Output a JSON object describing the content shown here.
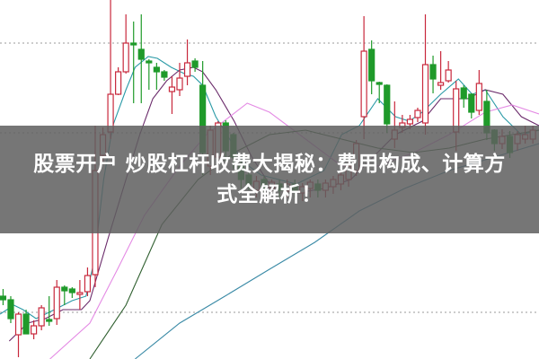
{
  "article": {
    "title_line1": "股票开户 炒股杠杆收费大揭秘：费用构成、计算方",
    "title_line2": "式全解析！"
  },
  "colors": {
    "up": "#c8283c",
    "down": "#1f9a2a",
    "grid": "#999999",
    "band": "#5f5f5f",
    "ma5": "#2a9aa6",
    "ma10": "#6a2a6a",
    "ma20": "#e48ae4",
    "ma30": "#2f5f2f",
    "ma60": "#3a8aa6"
  },
  "chart_data": {
    "type": "candlestick",
    "title": "",
    "xlabel": "",
    "ylabel": "",
    "axes_visible": false,
    "xlim": [
      -0.4,
      69.8
    ],
    "ylim": [
      0,
      100
    ],
    "grid": {
      "style": "dotted",
      "horizontal_levels": [
        88,
        63,
        13
      ]
    },
    "candles_ohlc": [
      [
        17.5,
        19.5,
        15,
        16.5
      ],
      [
        16.5,
        17.5,
        10,
        11.25
      ],
      [
        6.75,
        13,
        0.5,
        12.5
      ],
      [
        12.5,
        13.75,
        7,
        7
      ],
      [
        7,
        10.75,
        5.5,
        9.25
      ],
      [
        9.25,
        15,
        8,
        14.25
      ],
      [
        11,
        17.5,
        9.25,
        10.5
      ],
      [
        11.25,
        22,
        9.5,
        20
      ],
      [
        20,
        20.5,
        15,
        19
      ],
      [
        19.5,
        20,
        17,
        18.5
      ],
      [
        18,
        22,
        13.75,
        18.5
      ],
      [
        18.75,
        25.5,
        17.5,
        23.25
      ],
      [
        23.5,
        65,
        20,
        52.5
      ],
      [
        56.75,
        64.5,
        55,
        62.5
      ],
      [
        63.25,
        100,
        61.25,
        73.75
      ],
      [
        73.75,
        81.25,
        73.5,
        80
      ],
      [
        80,
        96,
        79.5,
        88
      ],
      [
        88,
        94,
        71.25,
        87.5
      ],
      [
        86.25,
        96,
        71.25,
        83.5
      ],
      [
        83,
        83.5,
        75,
        82.5
      ],
      [
        81.25,
        82.5,
        75,
        80
      ],
      [
        80,
        80.5,
        77.5,
        78.5
      ],
      [
        74.5,
        78.75,
        68.25,
        75.75
      ],
      [
        75,
        82.5,
        73.25,
        78.25
      ],
      [
        78.75,
        89,
        76.25,
        82.5
      ],
      [
        83,
        83.75,
        80,
        81.25
      ],
      [
        76.25,
        83,
        51.25,
        57.5
      ],
      [
        53.75,
        65,
        51.25,
        63.75
      ],
      [
        56.25,
        66.25,
        52,
        65.75
      ],
      [
        65.75,
        66.5,
        55,
        58
      ],
      [
        62.5,
        63,
        53,
        56.25
      ],
      [
        53.75,
        55,
        47.5,
        50
      ],
      [
        51.25,
        52,
        47,
        48.75
      ],
      [
        47,
        51,
        45,
        49.5
      ],
      [
        50,
        51,
        46,
        47.5
      ],
      [
        47.5,
        50,
        46,
        49.25
      ],
      [
        48.75,
        50,
        45,
        47
      ],
      [
        46.75,
        50,
        45,
        48.75
      ],
      [
        48.75,
        50,
        45,
        46.75
      ],
      [
        46.25,
        49,
        44,
        48
      ],
      [
        47.5,
        50,
        45,
        49.25
      ],
      [
        48.75,
        50,
        45,
        47
      ],
      [
        47,
        50,
        45,
        49
      ],
      [
        48,
        51,
        46,
        50
      ],
      [
        48.75,
        52,
        47,
        51.25
      ],
      [
        50,
        55,
        48,
        53.75
      ],
      [
        52.5,
        61,
        51,
        60
      ],
      [
        67.5,
        95.5,
        61.25,
        85.75
      ],
      [
        86.25,
        88.75,
        73.75,
        77.5
      ],
      [
        77,
        77.25,
        71.25,
        76.5
      ],
      [
        76.25,
        76.5,
        63,
        65.5
      ],
      [
        61.25,
        71.75,
        58.75,
        63.75
      ],
      [
        64.5,
        68,
        63,
        65.75
      ],
      [
        65.5,
        68,
        64,
        66.75
      ],
      [
        67.25,
        70,
        66,
        69.25
      ],
      [
        65.75,
        96,
        62.5,
        82
      ],
      [
        82,
        84.5,
        74,
        78
      ],
      [
        76.25,
        85.75,
        75,
        77
      ],
      [
        77.5,
        83,
        77,
        80.5
      ],
      [
        63.25,
        77.5,
        58,
        75.25
      ],
      [
        75.5,
        76.25,
        70,
        72.5
      ],
      [
        73.75,
        74,
        67,
        68.75
      ],
      [
        69.25,
        80.5,
        68,
        76.75
      ],
      [
        71.75,
        75,
        61,
        63
      ],
      [
        63.75,
        64,
        58,
        60
      ],
      [
        60,
        64,
        58.5,
        62
      ],
      [
        62,
        63.5,
        56,
        57.5
      ],
      [
        60,
        63.5,
        58,
        62.5
      ],
      [
        61.25,
        65,
        60,
        62.5
      ],
      [
        61.25,
        65,
        60,
        63.75
      ]
    ],
    "moving_averages": [
      {
        "key": "ma5",
        "points": [
          [
            -0.4,
            12.5
          ],
          [
            1.4,
            15
          ],
          [
            2.6,
            13.75
          ],
          [
            4.3,
            11.25
          ],
          [
            6.7,
            13.75
          ],
          [
            9,
            16.25
          ],
          [
            10.8,
            17.5
          ],
          [
            11.9,
            27.5
          ],
          [
            13.1,
            50
          ],
          [
            14.3,
            65
          ],
          [
            16,
            75
          ],
          [
            17.2,
            81.25
          ],
          [
            18.9,
            84.25
          ],
          [
            20.1,
            83.75
          ],
          [
            21.9,
            81.25
          ],
          [
            23.6,
            79.5
          ],
          [
            24.8,
            78.75
          ],
          [
            26,
            76.25
          ],
          [
            27.7,
            67.5
          ],
          [
            29.5,
            61.25
          ],
          [
            31.2,
            55
          ],
          [
            33.6,
            51.25
          ],
          [
            38.2,
            48.75
          ],
          [
            41.8,
            52.5
          ],
          [
            44.1,
            62.5
          ],
          [
            46.4,
            65
          ],
          [
            48.8,
            72.5
          ],
          [
            51.1,
            67.5
          ],
          [
            52.9,
            66.25
          ],
          [
            54.6,
            68.75
          ],
          [
            57,
            73.75
          ],
          [
            59.3,
            78
          ],
          [
            61.1,
            73.75
          ],
          [
            62.8,
            75
          ],
          [
            65.1,
            67.5
          ],
          [
            67.5,
            62.5
          ],
          [
            69.8,
            63.75
          ]
        ]
      },
      {
        "key": "ma10",
        "points": [
          [
            0.8,
            5
          ],
          [
            3.2,
            10
          ],
          [
            5.5,
            11.25
          ],
          [
            7.8,
            13.75
          ],
          [
            10.2,
            13.75
          ],
          [
            11.3,
            16.25
          ],
          [
            13.7,
            33.75
          ],
          [
            16,
            50
          ],
          [
            17.8,
            62.5
          ],
          [
            19.5,
            72.5
          ],
          [
            21.3,
            77.5
          ],
          [
            23,
            80.5
          ],
          [
            24.8,
            81.25
          ],
          [
            26,
            80
          ],
          [
            27.7,
            75
          ],
          [
            30.1,
            66.25
          ],
          [
            32.4,
            56.25
          ],
          [
            34.7,
            48.75
          ],
          [
            38.2,
            46.25
          ],
          [
            41.8,
            47.5
          ],
          [
            45.3,
            50
          ],
          [
            47.6,
            55
          ],
          [
            51.1,
            62.5
          ],
          [
            54.6,
            66.25
          ],
          [
            57,
            72.5
          ],
          [
            60.5,
            72.5
          ],
          [
            62.8,
            75
          ],
          [
            65.1,
            73.75
          ],
          [
            67.5,
            67.5
          ],
          [
            69.8,
            65
          ]
        ]
      },
      {
        "key": "ma20",
        "points": [
          [
            6.1,
            0
          ],
          [
            11.3,
            10
          ],
          [
            14.9,
            25
          ],
          [
            18.4,
            40
          ],
          [
            23,
            53.75
          ],
          [
            26.5,
            62.5
          ],
          [
            31.8,
            71.25
          ],
          [
            34.7,
            68.75
          ],
          [
            39.4,
            61.25
          ],
          [
            44.1,
            53.75
          ],
          [
            48.8,
            53.75
          ],
          [
            53.5,
            57.5
          ],
          [
            58.1,
            62.5
          ],
          [
            62.8,
            68.75
          ],
          [
            66.3,
            70.75
          ],
          [
            69.8,
            68.25
          ]
        ]
      },
      {
        "key": "ma30",
        "points": [
          [
            11.3,
            0
          ],
          [
            16,
            15
          ],
          [
            20.7,
            37.5
          ],
          [
            25.4,
            50
          ],
          [
            30.1,
            57.5
          ],
          [
            34.7,
            62.5
          ],
          [
            39.4,
            63.75
          ],
          [
            44.1,
            61.25
          ],
          [
            48.8,
            58.75
          ],
          [
            53.5,
            57.5
          ],
          [
            58.1,
            58.75
          ],
          [
            62.8,
            61.25
          ],
          [
            66.3,
            62.5
          ],
          [
            69.8,
            63.75
          ]
        ]
      },
      {
        "key": "ma60",
        "points": [
          [
            17.2,
            0
          ],
          [
            23,
            10
          ],
          [
            28.9,
            17.5
          ],
          [
            34.7,
            25
          ],
          [
            40.6,
            32.5
          ],
          [
            46.4,
            41.25
          ],
          [
            52.3,
            47.5
          ],
          [
            58.1,
            52.5
          ],
          [
            64,
            56.25
          ],
          [
            69.8,
            60
          ]
        ]
      }
    ]
  }
}
